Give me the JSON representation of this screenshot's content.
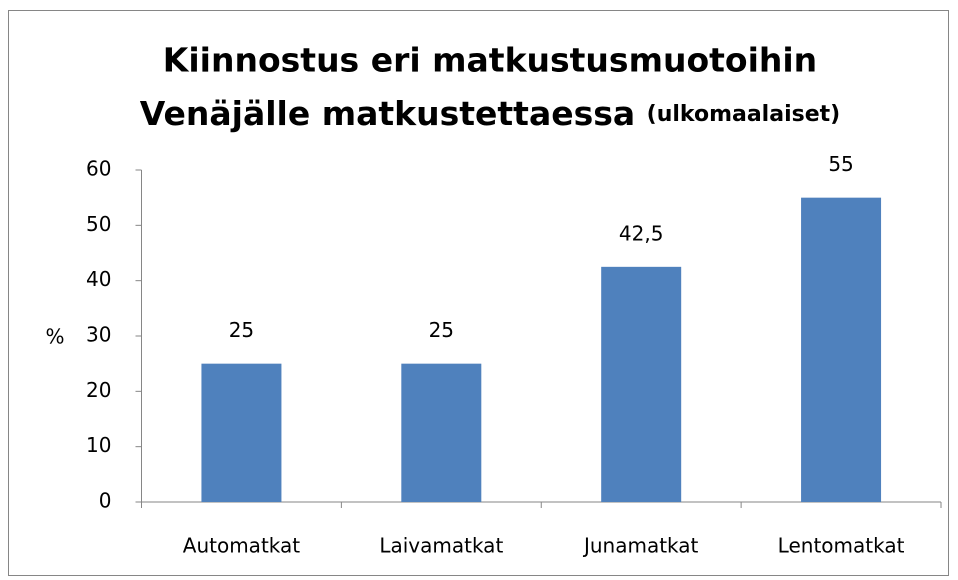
{
  "chart_data": {
    "type": "bar",
    "title": [
      "Kiinnostus eri matkustusmuotoihin",
      "Venäjälle matkustettaessa"
    ],
    "subtitle": "(ulkomaalaiset)",
    "y_label": "%",
    "categories": [
      "Automatkat",
      "Laivamatkat",
      "Junamatkat",
      "Lentomatkat"
    ],
    "values": [
      25,
      25,
      42.5,
      55
    ],
    "value_labels": [
      "25",
      "25",
      "42,5",
      "55"
    ],
    "color": "#4f81bd",
    "ylim": [
      0,
      60
    ],
    "yticks": [
      0,
      10,
      20,
      30,
      40,
      50,
      60
    ],
    "grid": false
  }
}
